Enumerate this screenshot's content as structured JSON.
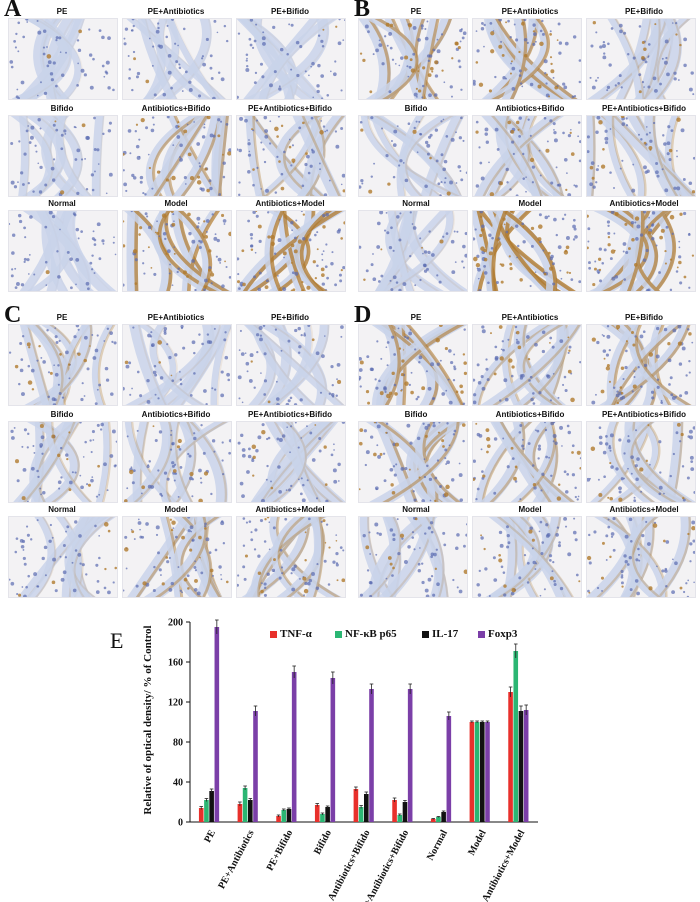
{
  "panels": [
    {
      "letter": "A",
      "labels": [
        "PE",
        "PE+Antibiotics",
        "PE+Bifido",
        "Bifido",
        "Antibiotics+Bifido",
        "PE+Antibiotics+Bifido",
        "Normal",
        "Model",
        "Antibiotics+Model"
      ],
      "stain": [
        0.05,
        0.05,
        0.05,
        0.08,
        0.5,
        0.35,
        0.02,
        0.7,
        0.75
      ]
    },
    {
      "letter": "B",
      "labels": [
        "PE",
        "PE+Antibiotics",
        "PE+Bifido",
        "Bifido",
        "Antibiotics+Bifido",
        "PE+Antibiotics+Bifido",
        "Normal",
        "Model",
        "Antibiotics+Model"
      ],
      "stain": [
        0.55,
        0.6,
        0.2,
        0.15,
        0.3,
        0.3,
        0.1,
        0.8,
        0.7
      ]
    },
    {
      "letter": "C",
      "labels": [
        "PE",
        "PE+Antibiotics",
        "PE+Bifido",
        "Bifido",
        "Antibiotics+Bifido",
        "PE+Antibiotics+Bifido",
        "Normal",
        "Model",
        "Antibiotics+Model"
      ],
      "stain": [
        0.3,
        0.1,
        0.1,
        0.25,
        0.25,
        0.2,
        0.15,
        0.45,
        0.4
      ]
    },
    {
      "letter": "D",
      "labels": [
        "PE",
        "PE+Antibiotics",
        "PE+Bifido",
        "Bifido",
        "Antibiotics+Bifido",
        "PE+Antibiotics+Bifido",
        "Normal",
        "Model",
        "Antibiotics+Model"
      ],
      "stain": [
        0.6,
        0.35,
        0.5,
        0.5,
        0.4,
        0.3,
        0.2,
        0.25,
        0.3
      ]
    }
  ],
  "colors": {
    "tissue": "#c9d3ea",
    "nuclei": "#5a6bb0",
    "dab": "#b07a2e",
    "bg": "#f3f2f4"
  },
  "chart_data": {
    "type": "bar",
    "panel_letter": "E",
    "ylabel": "Relative of optical density/ % of Control",
    "ylim": [
      0,
      200
    ],
    "yticks": [
      "0",
      "40",
      "80",
      "120",
      "160",
      "200"
    ],
    "categories": [
      "PE",
      "PE+Antibiotics",
      "PE+Bifido",
      "Bifido",
      "Antibiotics+Bifido",
      "PE+Antibiotics+Bifido",
      "Normal",
      "Model",
      "Antibiotics+Model"
    ],
    "series": [
      {
        "name": "TNF-α",
        "color": "#e8302b",
        "values": [
          14,
          18,
          6,
          17,
          33,
          22,
          3,
          100,
          130
        ],
        "errors": [
          1.5,
          2,
          1,
          1.5,
          2,
          2,
          0.5,
          1,
          5
        ]
      },
      {
        "name": "NF-κB p65",
        "color": "#2bb673",
        "values": [
          22,
          34,
          12,
          8,
          15,
          7,
          5,
          100,
          171
        ],
        "errors": [
          1.5,
          2,
          1,
          1,
          1.5,
          1,
          0.5,
          1,
          7
        ]
      },
      {
        "name": "IL-17",
        "color": "#111111",
        "values": [
          31,
          22,
          13,
          15,
          28,
          20,
          10,
          100,
          111
        ],
        "errors": [
          2,
          1.5,
          1,
          1,
          2,
          1.5,
          1,
          1,
          5
        ]
      },
      {
        "name": "Foxp3",
        "color": "#7b3fa8",
        "values": [
          195,
          111,
          150,
          144,
          133,
          133,
          106,
          100,
          112
        ],
        "errors": [
          7,
          5,
          6,
          6,
          5,
          5,
          4,
          1,
          5
        ]
      }
    ]
  }
}
